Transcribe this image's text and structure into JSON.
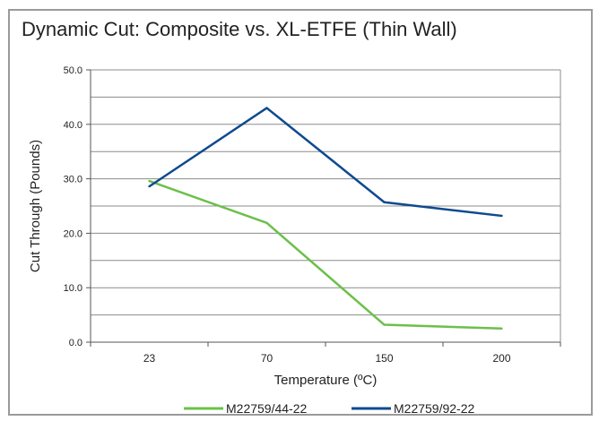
{
  "chart_data": {
    "type": "line",
    "title": "Dynamic Cut: Composite vs. XL-ETFE (Thin Wall)",
    "xlabel": "Temperature (ºC)",
    "ylabel": "Cut Through (Pounds)",
    "categories": [
      "23",
      "70",
      "150",
      "200"
    ],
    "ylim": [
      0,
      50
    ],
    "yticks": [
      "0.0",
      "10.0",
      "20.0",
      "30.0",
      "40.0",
      "50.0"
    ],
    "grid": true,
    "legend_position": "bottom",
    "series": [
      {
        "name": "M22759/44-22",
        "color": "#6cc04a",
        "values": [
          29.6,
          21.9,
          3.2,
          2.5
        ]
      },
      {
        "name": "M22759/92-22",
        "color": "#0d4a8f",
        "values": [
          28.6,
          43.0,
          25.7,
          23.2
        ]
      }
    ]
  }
}
